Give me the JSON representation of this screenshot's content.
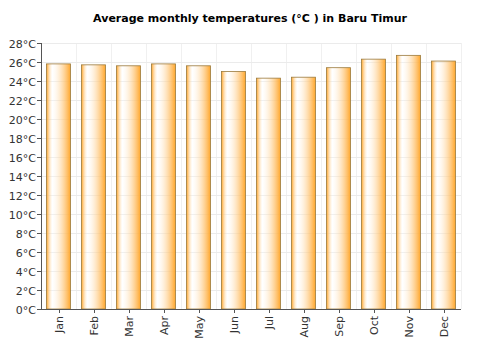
{
  "chart_data": {
    "type": "bar",
    "title": "Average monthly temperatures (°C ) in Baru Timur",
    "categories": [
      "Jan",
      "Feb",
      "Mar",
      "Apr",
      "May",
      "Jun",
      "Jul",
      "Aug",
      "Sep",
      "Oct",
      "Nov",
      "Dec"
    ],
    "values": [
      25.8,
      25.7,
      25.6,
      25.8,
      25.6,
      25.0,
      24.3,
      24.4,
      25.4,
      26.3,
      26.7,
      26.1
    ],
    "color": "#ffa62b",
    "ylim": [
      0,
      28
    ],
    "yticks": [
      {
        "value": 0,
        "label": "0°C"
      },
      {
        "value": 2,
        "label": "2°C"
      },
      {
        "value": 4,
        "label": "4°C"
      },
      {
        "value": 6,
        "label": "6°C"
      },
      {
        "value": 8,
        "label": "8°C"
      },
      {
        "value": 10,
        "label": "10°C"
      },
      {
        "value": 12,
        "label": "12°C"
      },
      {
        "value": 14,
        "label": "14°C"
      },
      {
        "value": 16,
        "label": "16°C"
      },
      {
        "value": 18,
        "label": "18°C"
      },
      {
        "value": 20,
        "label": "20°C"
      },
      {
        "value": 22,
        "label": "22°C"
      },
      {
        "value": 24,
        "label": "24°C"
      },
      {
        "value": 26,
        "label": "26°C"
      },
      {
        "value": 28,
        "label": "28°C"
      }
    ],
    "grid": true
  }
}
